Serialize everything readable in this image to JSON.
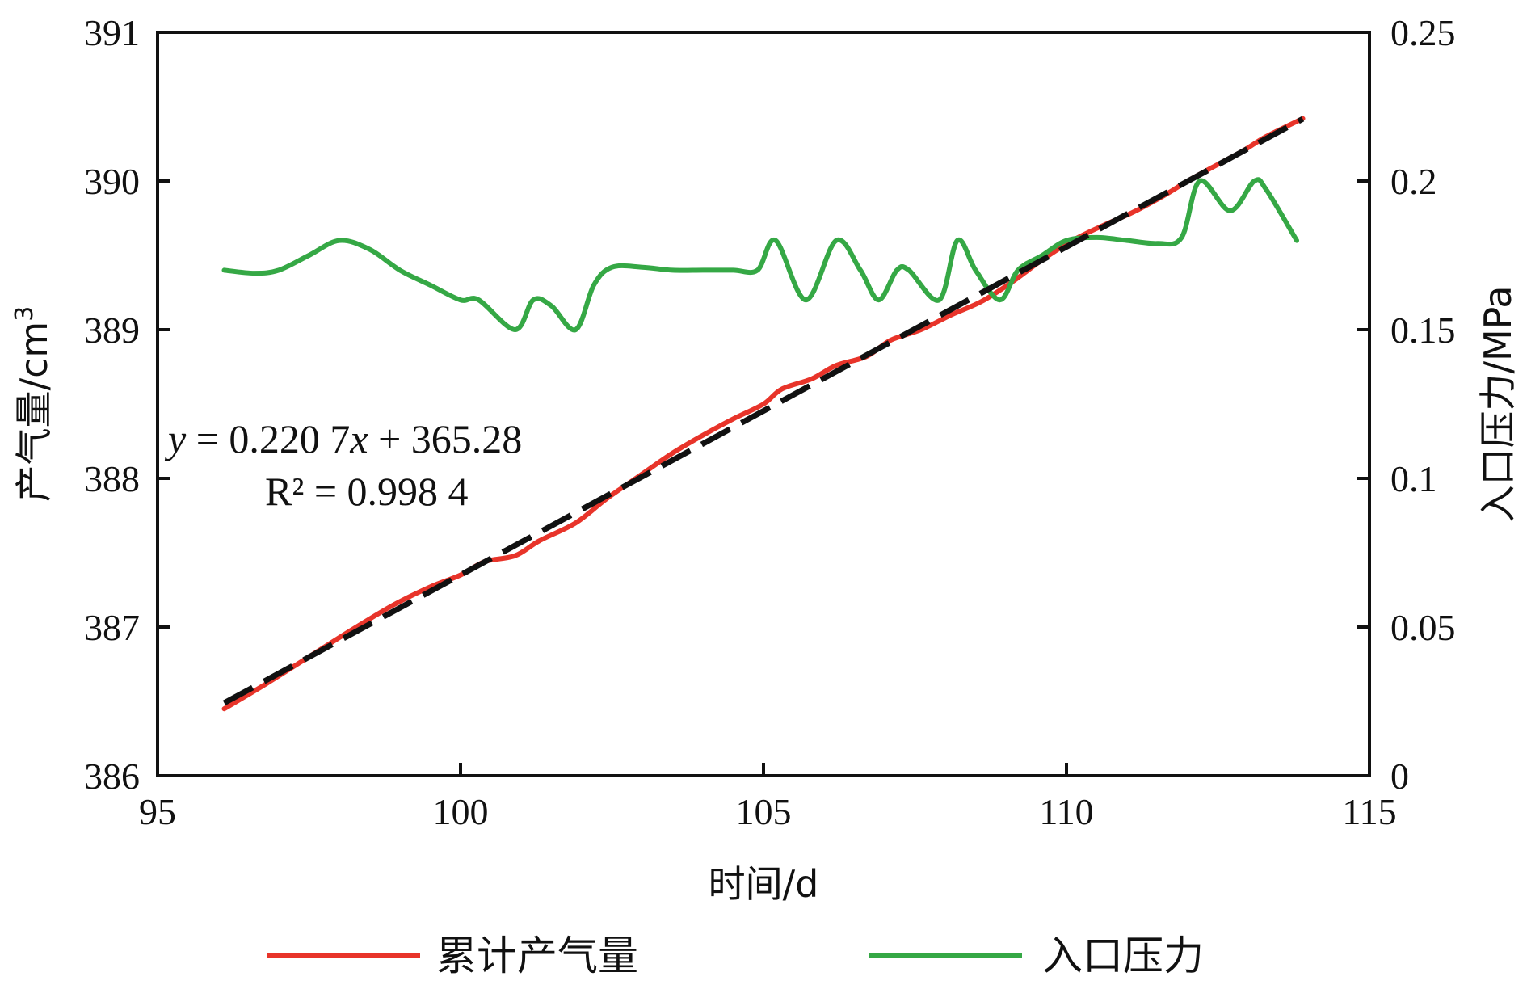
{
  "chart_data": {
    "type": "line",
    "xlabel": "时间/d",
    "ylabel_left_main": "产气量",
    "ylabel_left_unit": "/cm",
    "ylabel_left_sup": "3",
    "ylabel_right": "入口压力/MPa",
    "x_ticks": [
      "95",
      "100",
      "105",
      "110",
      "115"
    ],
    "y_left_ticks": [
      "386",
      "387",
      "388",
      "389",
      "390",
      "391"
    ],
    "y_right_ticks": [
      "0",
      "0.05",
      "0.1",
      "0.15",
      "0.2",
      "0.25"
    ],
    "xlim": [
      95,
      115
    ],
    "ylim_left": [
      386,
      391
    ],
    "ylim_right": [
      0,
      0.25
    ],
    "colors": {
      "cumulative": "#e8342a",
      "pressure": "#35a845",
      "fit": "#111111"
    },
    "fit": {
      "slope": 0.2207,
      "intercept": 365.28,
      "x_range": [
        96.1,
        113.9
      ],
      "equation_y": "y",
      "equation_rest": " = 0.220 7",
      "equation_x": "x",
      "equation_tail": " + 365.28",
      "r2_label": "R² = 0.998 4"
    },
    "series": [
      {
        "name": "累计产气量",
        "axis": "left",
        "x": [
          96.1,
          96.8,
          97.5,
          98.2,
          98.9,
          99.5,
          100.0,
          100.4,
          100.9,
          101.3,
          101.9,
          102.4,
          103.0,
          103.5,
          104.0,
          104.5,
          105.0,
          105.3,
          105.8,
          106.2,
          106.7,
          107.1,
          107.6,
          108.1,
          108.6,
          109.1,
          109.6,
          110.1,
          110.6,
          111.1,
          111.6,
          112.0,
          112.4,
          112.9,
          113.3,
          113.9
        ],
        "values": [
          386.45,
          386.62,
          386.8,
          386.98,
          387.15,
          387.27,
          387.35,
          387.44,
          387.48,
          387.58,
          387.7,
          387.86,
          388.03,
          388.17,
          388.29,
          388.4,
          388.5,
          388.6,
          388.67,
          388.76,
          388.82,
          388.93,
          389.0,
          389.1,
          389.19,
          389.32,
          389.47,
          389.6,
          389.7,
          389.79,
          389.9,
          390.0,
          390.09,
          390.2,
          390.3,
          390.42
        ]
      },
      {
        "name": "入口压力",
        "axis": "right",
        "x": [
          96.1,
          96.6,
          97.0,
          97.5,
          98.0,
          98.5,
          99.0,
          99.5,
          100.0,
          100.3,
          100.9,
          101.2,
          101.5,
          101.9,
          102.2,
          102.5,
          103.0,
          103.5,
          104.0,
          104.5,
          104.9,
          105.2,
          105.7,
          106.2,
          106.6,
          106.9,
          107.2,
          107.4,
          107.9,
          108.2,
          108.5,
          108.9,
          109.2,
          109.6,
          110.0,
          110.5,
          111.0,
          111.5,
          111.9,
          112.2,
          112.7,
          113.1,
          113.3,
          113.8
        ],
        "values": [
          0.17,
          0.169,
          0.17,
          0.175,
          0.18,
          0.177,
          0.17,
          0.165,
          0.16,
          0.16,
          0.15,
          0.16,
          0.158,
          0.15,
          0.165,
          0.171,
          0.171,
          0.17,
          0.17,
          0.17,
          0.17,
          0.18,
          0.16,
          0.18,
          0.17,
          0.16,
          0.17,
          0.17,
          0.16,
          0.18,
          0.17,
          0.16,
          0.17,
          0.175,
          0.18,
          0.181,
          0.18,
          0.179,
          0.181,
          0.2,
          0.19,
          0.2,
          0.197,
          0.18
        ]
      }
    ]
  }
}
